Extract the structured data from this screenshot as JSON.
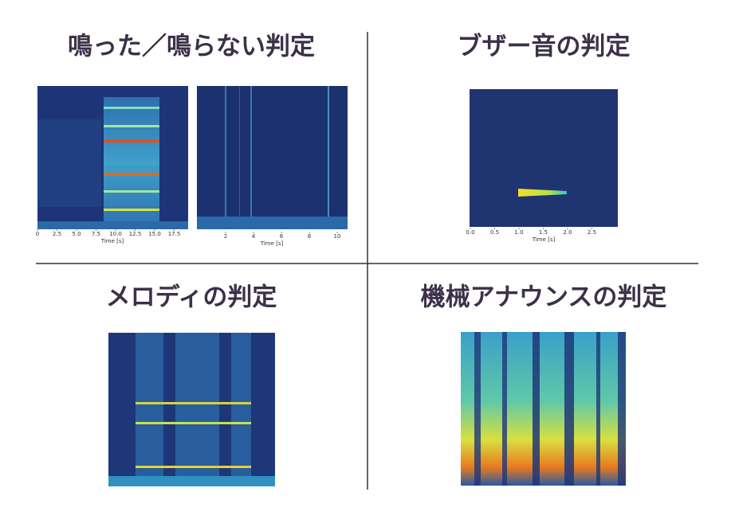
{
  "panels": [
    {
      "title": "鳴った／鳴らない判定",
      "plots": [
        {
          "xticks": [
            "0",
            "2.5",
            "5.0",
            "7.5",
            "10.0",
            "12.5",
            "15.0",
            "17.5"
          ],
          "xlabel": "Time [s]"
        },
        {
          "xticks": [
            "2",
            "4",
            "6",
            "8",
            "10"
          ],
          "xlabel": "Time [s]"
        }
      ]
    },
    {
      "title": "ブザー音の判定",
      "plots": [
        {
          "xticks": [
            "0.0",
            "0.5",
            "1.0",
            "1.5",
            "2.0",
            "2.5"
          ],
          "xlabel": "Time [s]"
        }
      ]
    },
    {
      "title": "メロディの判定"
    },
    {
      "title": "機械アナウンスの判定"
    }
  ]
}
